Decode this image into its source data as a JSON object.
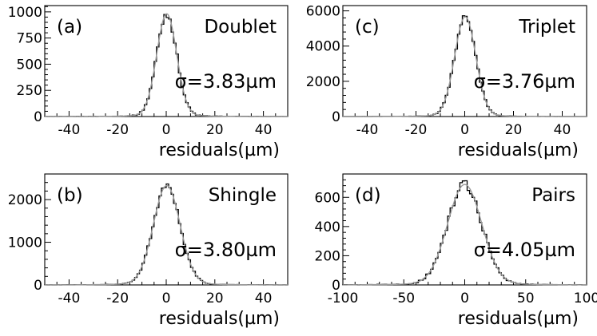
{
  "chart_data": [
    {
      "type": "histogram",
      "panel_label": "(a)",
      "title": "Doublet",
      "sigma_text": "σ=3.83µm",
      "sigma_um": 3.83,
      "xlabel": "residuals(µm)",
      "xlim": [
        -50,
        50
      ],
      "ylim": [
        0,
        1060
      ],
      "xticks": [
        -40,
        -20,
        0,
        20,
        40
      ],
      "yticks": [
        0,
        250,
        500,
        750,
        1000
      ],
      "bin_width_um": 1,
      "peak_count": 970,
      "mean_um": 0.2,
      "core_sigma_um": 4.1,
      "fit_line": "gaussian"
    },
    {
      "type": "histogram",
      "panel_label": "(c)",
      "title": "Triplet",
      "sigma_text": "σ=3.76µm",
      "sigma_um": 3.76,
      "xlabel": "residuals(µm)",
      "xlim": [
        -50,
        50
      ],
      "ylim": [
        0,
        6300
      ],
      "xticks": [
        -40,
        -20,
        0,
        20,
        40
      ],
      "yticks": [
        0,
        2000,
        4000,
        6000
      ],
      "bin_width_um": 1,
      "peak_count": 5600,
      "mean_um": 0.2,
      "core_sigma_um": 4.3,
      "fit_line": "gaussian"
    },
    {
      "type": "histogram",
      "panel_label": "(b)",
      "title": "Shingle",
      "sigma_text": "σ=3.80µm",
      "sigma_um": 3.8,
      "xlabel": "residuals(µm)",
      "xlim": [
        -50,
        50
      ],
      "ylim": [
        0,
        2600
      ],
      "xticks": [
        -40,
        -20,
        0,
        20,
        40
      ],
      "yticks": [
        0,
        1000,
        2000
      ],
      "bin_width_um": 1,
      "peak_count": 2300,
      "mean_um": 0.2,
      "core_sigma_um": 5.5,
      "fit_line": "gaussian"
    },
    {
      "type": "histogram",
      "panel_label": "(d)",
      "title": "Pairs",
      "sigma_text": "σ=4.05µm",
      "sigma_um": 4.05,
      "xlabel": "residuals(µm)",
      "xlim": [
        -100,
        100
      ],
      "ylim": [
        0,
        760
      ],
      "xticks": [
        -100,
        -50,
        0,
        50,
        100
      ],
      "yticks": [
        0,
        200,
        400,
        600
      ],
      "bin_width_um": 2,
      "peak_count": 680,
      "mean_um": 0,
      "core_sigma_um": 14,
      "fit_line": "gaussian"
    }
  ]
}
